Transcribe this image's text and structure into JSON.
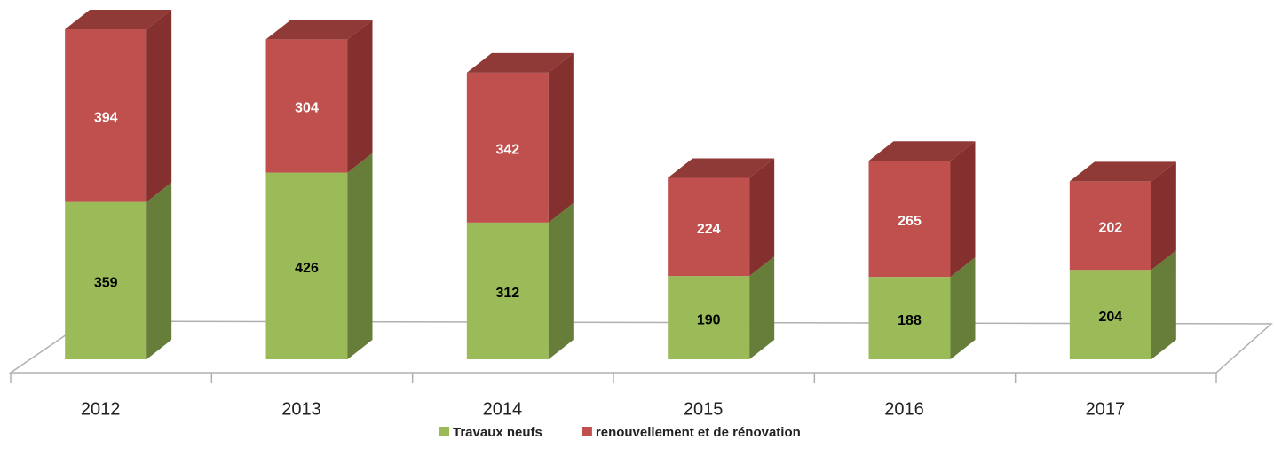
{
  "chart_data": {
    "type": "bar3d_stacked",
    "categories": [
      "2012",
      "2013",
      "2014",
      "2015",
      "2016",
      "2017"
    ],
    "series": [
      {
        "name": "Travaux neufs",
        "color": "#9bbb59",
        "side_color": "#677e3a",
        "label_color": "#000000",
        "values": [
          359,
          426,
          312,
          190,
          188,
          204
        ]
      },
      {
        "name": "renouvellement et de rénovation",
        "color": "#c0504d",
        "side_color": "#83302e",
        "top_color": "#8f3a37",
        "label_color": "#ffffff",
        "values": [
          394,
          304,
          342,
          224,
          265,
          202
        ]
      }
    ],
    "legend": "bottom"
  }
}
